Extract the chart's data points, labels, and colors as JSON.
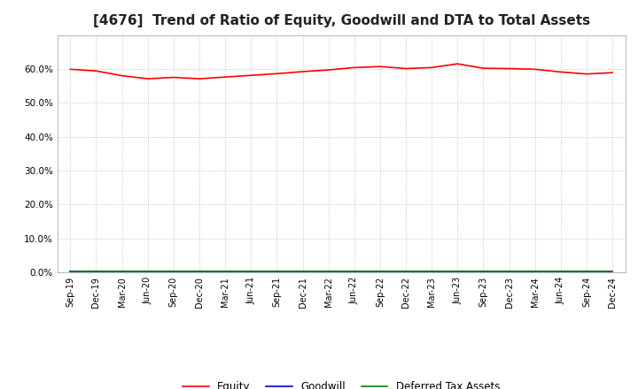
{
  "title": "[4676]  Trend of Ratio of Equity, Goodwill and DTA to Total Assets",
  "x_labels": [
    "Sep-19",
    "Dec-19",
    "Mar-20",
    "Jun-20",
    "Sep-20",
    "Dec-20",
    "Mar-21",
    "Jun-21",
    "Sep-21",
    "Dec-21",
    "Mar-22",
    "Jun-22",
    "Sep-22",
    "Dec-22",
    "Mar-23",
    "Jun-23",
    "Sep-23",
    "Dec-23",
    "Mar-24",
    "Jun-24",
    "Sep-24",
    "Dec-24"
  ],
  "equity": [
    0.599,
    0.594,
    0.58,
    0.571,
    0.575,
    0.571,
    0.576,
    0.581,
    0.586,
    0.592,
    0.597,
    0.604,
    0.607,
    0.601,
    0.604,
    0.615,
    0.602,
    0.601,
    0.599,
    0.591,
    0.585,
    0.589
  ],
  "goodwill": [
    0.002,
    0.002,
    0.002,
    0.002,
    0.002,
    0.002,
    0.002,
    0.002,
    0.002,
    0.002,
    0.002,
    0.002,
    0.002,
    0.002,
    0.002,
    0.002,
    0.002,
    0.002,
    0.002,
    0.002,
    0.002,
    0.002
  ],
  "dta": [
    0.003,
    0.003,
    0.003,
    0.003,
    0.003,
    0.003,
    0.003,
    0.003,
    0.003,
    0.003,
    0.003,
    0.003,
    0.003,
    0.003,
    0.003,
    0.003,
    0.003,
    0.003,
    0.003,
    0.003,
    0.003,
    0.003
  ],
  "equity_color": "#ff0000",
  "goodwill_color": "#0000cc",
  "dta_color": "#008000",
  "ylim": [
    0.0,
    0.7
  ],
  "yticks": [
    0.0,
    0.1,
    0.2,
    0.3,
    0.4,
    0.5,
    0.6
  ],
  "background_color": "#ffffff",
  "plot_bg_color": "#ffffff",
  "grid_color": "#999999",
  "title_fontsize": 11,
  "tick_fontsize": 7,
  "legend_labels": [
    "Equity",
    "Goodwill",
    "Deferred Tax Assets"
  ]
}
